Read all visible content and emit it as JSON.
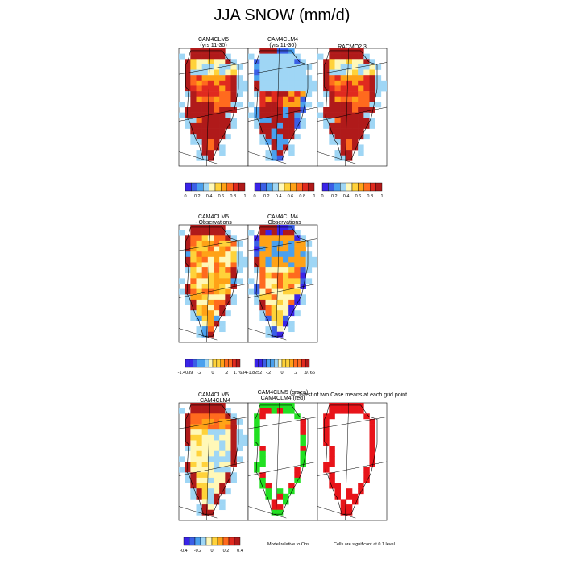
{
  "title": "JJA SNOW (mm/d)",
  "colors": {
    "scale10": [
      "#3a24e8",
      "#3b5fe6",
      "#4aa0ee",
      "#9fd6f5",
      "#fff8b8",
      "#ffd23a",
      "#ffa217",
      "#ff6a1e",
      "#e02a1f",
      "#b01a1a"
    ],
    "sig_green": "#22e022",
    "sig_red": "#e8141a",
    "land_light": "#cce8f8"
  },
  "panels": [
    {
      "id": "p1",
      "title1": "CAM4CLM5",
      "title2": "(yrs 11-30)",
      "style": "warm_full"
    },
    {
      "id": "p2",
      "title1": "CAM4CLM4",
      "title2": "(yrs 11-30)",
      "style": "cold_full"
    },
    {
      "id": "p3",
      "title1": "RACMO2.3",
      "title2": "",
      "style": "warm_full"
    },
    {
      "id": "p4",
      "title1": "CAM4CLM5",
      "title2": "- Observations",
      "style": "diff_warm"
    },
    {
      "id": "p5",
      "title1": "CAM4CLM4",
      "title2": "- Observations",
      "style": "diff_mixed"
    },
    {
      "id": "p6",
      "title1": "CAM4CLM5",
      "title2": "- CAM4CLM4",
      "style": "diff_models"
    },
    {
      "id": "p7",
      "title1": "CAM4CLM5 (green)",
      "title2": "CAM4CLM4 (red)",
      "style": "sig_green_red"
    },
    {
      "id": "p8",
      "title1": "T-test of two Case means at each grid point",
      "title2": "",
      "style": "sig_red"
    }
  ],
  "colorbars": [
    {
      "id": "cb1",
      "labels": [
        "0",
        "0.2",
        "0.4",
        "0.6",
        "0.8",
        "1"
      ]
    },
    {
      "id": "cb2",
      "labels": [
        "0",
        "0.2",
        "0.4",
        "0.6",
        "0.8",
        "1"
      ]
    },
    {
      "id": "cb3",
      "labels": [
        "0",
        "0.2",
        "0.4",
        "0.6",
        "0.8",
        "1"
      ]
    },
    {
      "id": "cb4",
      "labels": [
        "-1.4039",
        "-.2",
        "0",
        ".2",
        "1.7634"
      ]
    },
    {
      "id": "cb5",
      "labels": [
        "-1.8252",
        "-.2",
        "0",
        ".2",
        "",
        "",
        "",
        "",
        "",
        "",
        "",
        "",
        "",
        "",
        "",
        "",
        "",
        "",
        "",
        ".9766"
      ]
    },
    {
      "id": "cb6",
      "labels": [
        "-0.4",
        "-0.2",
        "0",
        "0.2",
        "0.4"
      ]
    }
  ],
  "notes": {
    "model_rel": "Model relative to Obs",
    "significance": "Cells are significant at 0.1 level"
  }
}
